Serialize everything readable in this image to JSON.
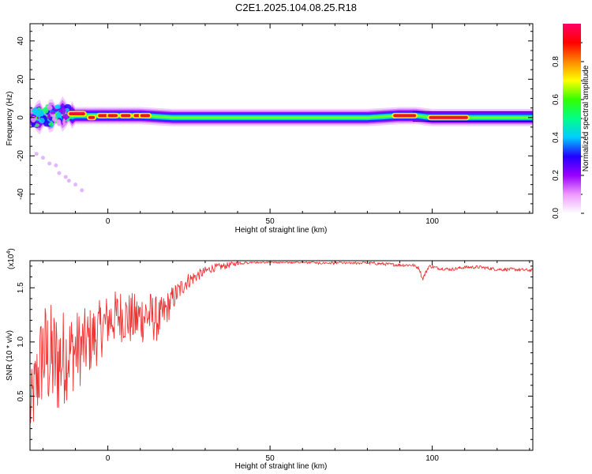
{
  "title": "C2E1.2025.104.08.25.R18",
  "chart_data": [
    {
      "type": "heatmap",
      "xlabel": "Height of straight line (km)",
      "ylabel": "Frequency (Hz)",
      "xlim": [
        -24,
        131
      ],
      "ylim": [
        -50,
        49
      ],
      "xticks": [
        0,
        50,
        100
      ],
      "yticks": [
        -40,
        -20,
        0,
        20,
        40
      ],
      "colorbar": {
        "label": "Normalized spectral amplitude",
        "range": [
          0,
          1
        ],
        "ticks": [
          "0.0",
          "0.2",
          "0.4",
          "0.6",
          "0.8"
        ],
        "colors": [
          "#ffffff",
          "#ee99ff",
          "#9900ff",
          "#2200ff",
          "#00ccff",
          "#00ff88",
          "#33ff00",
          "#ffff00",
          "#ff8800",
          "#ff0000",
          "#ff0066"
        ]
      },
      "band": {
        "center_freq": [
          [
            -24,
            1
          ],
          [
            -20,
            0
          ],
          [
            -15,
            2
          ],
          [
            -10,
            1
          ],
          [
            0,
            1
          ],
          [
            10,
            1
          ],
          [
            20,
            0
          ],
          [
            40,
            0
          ],
          [
            60,
            0
          ],
          [
            80,
            0
          ],
          [
            90,
            1
          ],
          [
            95,
            1
          ],
          [
            100,
            0
          ],
          [
            110,
            0
          ],
          [
            120,
            0
          ],
          [
            131,
            0
          ]
        ],
        "peaks": [
          {
            "x_start": -12,
            "x_end": -7,
            "freq": 2
          },
          {
            "x_start": -6,
            "x_end": -4,
            "freq": 0
          },
          {
            "x_start": -3,
            "x_end": 0,
            "freq": 1
          },
          {
            "x_start": 0,
            "x_end": 3,
            "freq": 1
          },
          {
            "x_start": 4,
            "x_end": 7,
            "freq": 1
          },
          {
            "x_start": 8,
            "x_end": 10,
            "freq": 1
          },
          {
            "x_start": 10,
            "x_end": 13,
            "freq": 1
          },
          {
            "x_start": 88,
            "x_end": 95,
            "freq": 1
          },
          {
            "x_start": 99,
            "x_end": 111,
            "freq": 0
          }
        ],
        "scatter_points": [
          [
            -22,
            -19
          ],
          [
            -20,
            -21
          ],
          [
            -18,
            -24
          ],
          [
            -16,
            -25
          ],
          [
            -15,
            -29
          ],
          [
            -13,
            -31
          ],
          [
            -12,
            -33
          ],
          [
            -10,
            -35
          ],
          [
            -8,
            -38
          ]
        ]
      }
    },
    {
      "type": "line",
      "xlabel": "Height of straight line (km)",
      "ylabel": "SNR (10 * v/v)",
      "y_multiplier": "(x10",
      "y_multiplier_exp": "4",
      "y_multiplier_close": ")",
      "xlim": [
        -24,
        131
      ],
      "ylim": [
        0,
        1.75
      ],
      "xticks": [
        0,
        50,
        100
      ],
      "yticks": [
        0.5,
        1.0,
        1.5
      ],
      "ytick_labels": [
        "0.5",
        "1.0",
        "1.5"
      ],
      "color": "#ee3333",
      "series": [
        {
          "x": [
            -24,
            -20,
            -16,
            -12,
            -8,
            -4,
            0,
            4,
            8,
            12,
            16,
            20,
            24,
            28,
            32,
            36,
            40,
            45,
            50,
            55,
            60,
            65,
            70,
            75,
            80,
            85,
            90,
            94,
            96,
            97,
            99,
            102,
            106,
            110,
            115,
            120,
            125,
            131
          ],
          "y": [
            0.35,
            0.9,
            0.8,
            0.9,
            0.95,
            1.05,
            1.2,
            1.25,
            1.2,
            1.25,
            1.2,
            1.4,
            1.55,
            1.62,
            1.68,
            1.7,
            1.73,
            1.74,
            1.74,
            1.74,
            1.74,
            1.73,
            1.73,
            1.73,
            1.73,
            1.72,
            1.71,
            1.71,
            1.68,
            1.58,
            1.7,
            1.68,
            1.67,
            1.69,
            1.69,
            1.67,
            1.67,
            1.66
          ],
          "noise_amp": [
            0.3,
            0.5,
            0.55,
            0.4,
            0.35,
            0.3,
            0.25,
            0.25,
            0.25,
            0.25,
            0.2,
            0.12,
            0.08,
            0.05,
            0.04,
            0.03,
            0.02,
            0.015,
            0.015,
            0.015,
            0.015,
            0.015,
            0.015,
            0.015,
            0.015,
            0.015,
            0.015,
            0.015,
            0.015,
            0.02,
            0.015,
            0.015,
            0.015,
            0.015,
            0.015,
            0.015,
            0.015,
            0.015
          ]
        }
      ]
    }
  ]
}
